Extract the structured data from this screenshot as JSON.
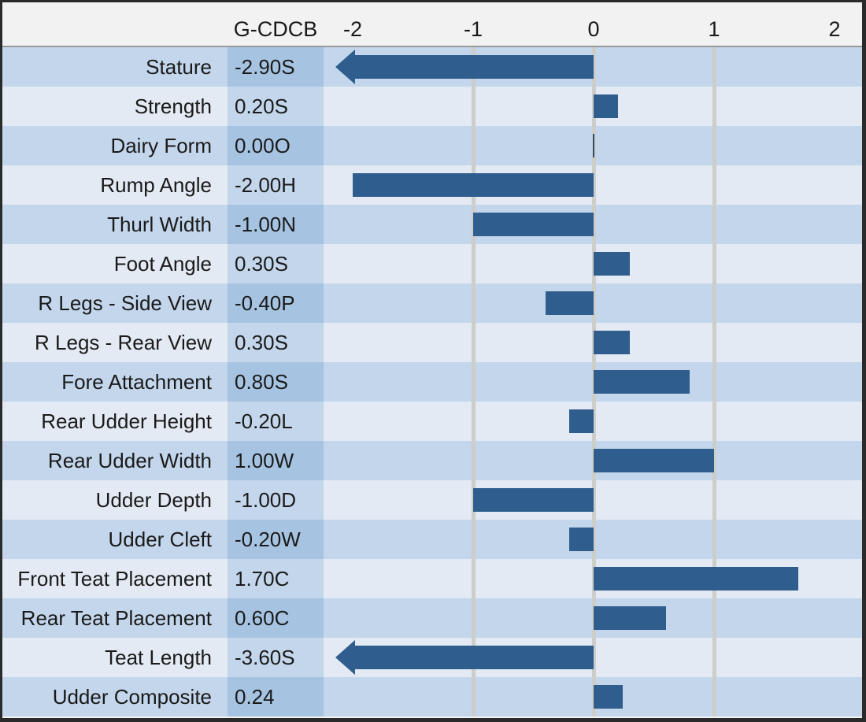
{
  "header": {
    "series_label": "G-CDCB",
    "tick_labels": [
      "-2",
      "-1",
      "0",
      "1",
      "2"
    ]
  },
  "chart_data": {
    "type": "bar",
    "orientation": "horizontal",
    "title": "",
    "series_label": "G-CDCB",
    "categories": [
      "Stature",
      "Strength",
      "Dairy Form",
      "Rump Angle",
      "Thurl Width",
      "Foot Angle",
      "R Legs - Side View",
      "R Legs - Rear View",
      "Fore Attachment",
      "Rear Udder Height",
      "Rear Udder Width",
      "Udder Depth",
      "Udder Cleft",
      "Front Teat Placement",
      "Rear Teat Placement",
      "Teat Length",
      "Udder Composite"
    ],
    "value_labels": [
      "-2.90S",
      "0.20S",
      "0.00O",
      "-2.00H",
      "-1.00N",
      "0.30S",
      "-0.40P",
      "0.30S",
      "0.80S",
      "-0.20L",
      "1.00W",
      "-1.00D",
      "-0.20W",
      "1.70C",
      "0.60C",
      "-3.60S",
      "0.24"
    ],
    "values": [
      -2.9,
      0.2,
      0.0,
      -2.0,
      -1.0,
      0.3,
      -0.4,
      0.3,
      0.8,
      -0.2,
      1.0,
      -1.0,
      -0.2,
      1.7,
      0.6,
      -3.6,
      0.24
    ],
    "x_ticks": [
      -2,
      -1,
      0,
      1,
      2
    ],
    "xlim": [
      -2.24,
      2.23
    ],
    "gridlines_at": [
      -1,
      0,
      1
    ],
    "clipped_to_arrow": [
      "Stature",
      "Teat Length"
    ],
    "legend_position": "none",
    "grid": true,
    "colors": {
      "bar": "#2f5e8e",
      "row_odd_bg": "#c3d6eb",
      "row_odd_value_bg": "#a6c4e2",
      "row_even_bg": "#e3eaf3",
      "row_even_value_bg": "#c3d6eb",
      "gridline": "#cdcdca",
      "header_bg": "#f2f2f2",
      "border": "#2a2a2a",
      "text": "#1a1a1a"
    }
  }
}
